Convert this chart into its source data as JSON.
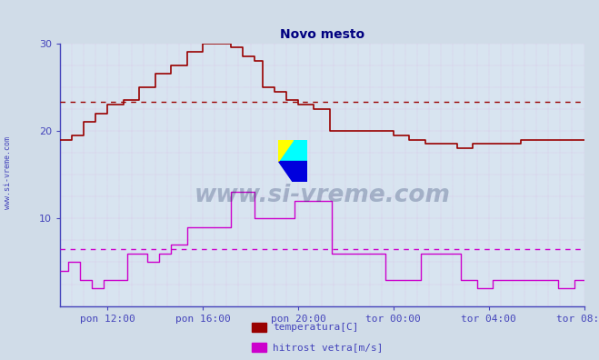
{
  "title": "Novo mesto",
  "title_color": "#000080",
  "bg_color": "#d0dce8",
  "plot_bg_color": "#d8e4f0",
  "temp_color": "#990000",
  "wind_color": "#cc00cc",
  "temp_avg": 23.3,
  "wind_avg": 6.5,
  "ylim": [
    0,
    30
  ],
  "y_ticks": [
    10,
    20,
    30
  ],
  "xlim": [
    0,
    1320
  ],
  "x_ticks": [
    120,
    360,
    600,
    840,
    1080,
    1320
  ],
  "x_tick_labels": [
    "pon 12:00",
    "pon 16:00",
    "pon 20:00",
    "tor 00:00",
    "tor 04:00",
    "tor 08:00"
  ],
  "temp_x": [
    0,
    30,
    30,
    60,
    60,
    90,
    90,
    120,
    120,
    160,
    160,
    200,
    200,
    240,
    240,
    280,
    280,
    320,
    320,
    360,
    360,
    395,
    395,
    430,
    430,
    460,
    460,
    490,
    490,
    510,
    510,
    540,
    540,
    570,
    570,
    600,
    600,
    640,
    640,
    680,
    680,
    720,
    720,
    760,
    760,
    800,
    800,
    840,
    840,
    880,
    880,
    920,
    920,
    960,
    960,
    1000,
    1000,
    1040,
    1040,
    1080,
    1080,
    1120,
    1120,
    1160,
    1160,
    1200,
    1200,
    1240,
    1240,
    1280,
    1280,
    1320
  ],
  "temp_y": [
    19,
    19,
    19.5,
    19.5,
    21,
    21,
    22,
    22,
    23,
    23,
    23.5,
    23.5,
    25,
    25,
    26.5,
    26.5,
    27.5,
    27.5,
    29,
    29,
    30,
    30,
    30,
    30,
    29.5,
    29.5,
    28.5,
    28.5,
    28,
    28,
    25,
    25,
    24.5,
    24.5,
    23.5,
    23.5,
    23,
    23,
    22.5,
    22.5,
    20,
    20,
    20,
    20,
    20,
    20,
    20,
    20,
    19.5,
    19.5,
    19,
    19,
    18.5,
    18.5,
    18.5,
    18.5,
    18,
    18,
    18.5,
    18.5,
    18.5,
    18.5,
    18.5,
    18.5,
    19,
    19,
    19,
    19,
    19,
    19,
    19,
    19
  ],
  "wind_x": [
    0,
    20,
    20,
    50,
    50,
    80,
    80,
    110,
    110,
    170,
    170,
    220,
    220,
    250,
    250,
    280,
    280,
    320,
    320,
    370,
    370,
    430,
    430,
    490,
    490,
    550,
    550,
    590,
    590,
    635,
    635,
    685,
    685,
    730,
    730,
    770,
    770,
    820,
    820,
    860,
    860,
    910,
    910,
    960,
    960,
    1010,
    1010,
    1050,
    1050,
    1090,
    1090,
    1130,
    1130,
    1175,
    1175,
    1215,
    1215,
    1255,
    1255,
    1295,
    1295,
    1320
  ],
  "wind_y": [
    4,
    4,
    5,
    5,
    3,
    3,
    2,
    2,
    3,
    3,
    6,
    6,
    5,
    5,
    6,
    6,
    7,
    7,
    9,
    9,
    9,
    9,
    13,
    13,
    10,
    10,
    10,
    10,
    12,
    12,
    12,
    12,
    6,
    6,
    6,
    6,
    6,
    6,
    3,
    3,
    3,
    3,
    6,
    6,
    6,
    6,
    3,
    3,
    2,
    2,
    3,
    3,
    3,
    3,
    3,
    3,
    3,
    3,
    2,
    2,
    3,
    3
  ],
  "axis_color": "#4444bb",
  "tick_color": "#4444bb",
  "tick_fontsize": 8,
  "title_fontsize": 10,
  "grid_color": "#c8a0c8",
  "left_label": "www.si-vreme.com",
  "left_label_color": "#4444bb",
  "watermark": "www.si-vreme.com",
  "watermark_color": "#1a3060",
  "legend_labels": [
    "temperatura[C]",
    "hitrost vetra[m/s]"
  ],
  "legend_colors": [
    "#990000",
    "#cc00cc"
  ]
}
